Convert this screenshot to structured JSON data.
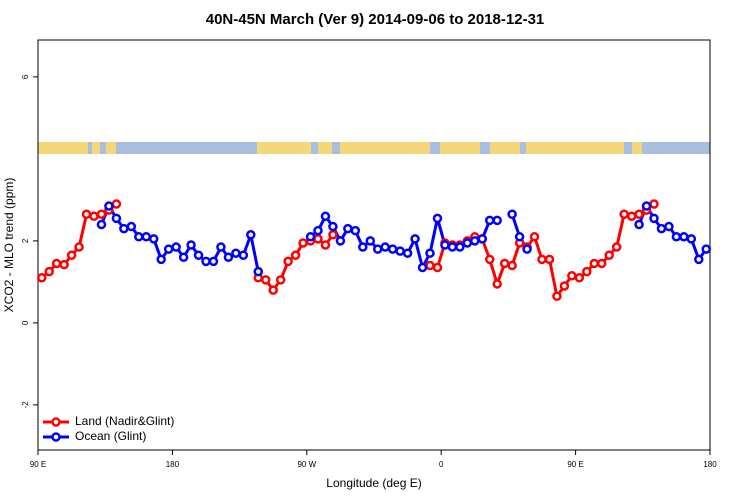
{
  "chart_data": {
    "type": "line",
    "title": "40N-45N March (Ver 9)   2014-09-06 to 2018-12-31",
    "x_label": "Longitude (deg E)",
    "y_label": "XCO2 - MLO trend (ppm)",
    "xlim": [
      90,
      540
    ],
    "ylim": [
      -3.1,
      6.9
    ],
    "xticks": [
      {
        "value": 90,
        "label": "90 E"
      },
      180,
      {
        "value": 270,
        "label": "90 W"
      },
      {
        "value": 360,
        "label": "0"
      },
      {
        "value": 450,
        "label": "90 E"
      },
      {
        "value": 540,
        "label": "180"
      }
    ],
    "yticks": [
      -2,
      0,
      2,
      6
    ],
    "legend": "bottom-left",
    "x": [
      92.5,
      97.5,
      102.5,
      107.5,
      112.5,
      117.5,
      122.5,
      127.5,
      132.5,
      137.5,
      142.5,
      147.5,
      152.5,
      157.5,
      162.5,
      167.5,
      172.5,
      177.5,
      182.5,
      187.5,
      192.5,
      197.5,
      202.5,
      207.5,
      212.5,
      217.5,
      222.5,
      227.5,
      232.5,
      237.5,
      242.5,
      247.5,
      252.5,
      257.5,
      262.5,
      267.5,
      272.5,
      277.5,
      282.5,
      287.5,
      292.5,
      297.5,
      302.5,
      307.5,
      312.5,
      317.5,
      322.5,
      327.5,
      332.5,
      337.5,
      342.5,
      347.5,
      352.5,
      357.5,
      362.5,
      367.5,
      372.5,
      377.5,
      382.5,
      387.5,
      392.5,
      397.5,
      402.5,
      407.5,
      412.5,
      417.5,
      422.5,
      427.5,
      432.5,
      437.5,
      442.5,
      447.5,
      452.5,
      457.5,
      462.5,
      467.5,
      472.5,
      477.5,
      482.5,
      487.5,
      492.5,
      497.5,
      502.5,
      507.5,
      512.5,
      517.5,
      522.5,
      527.5,
      532.5,
      537.5
    ],
    "series": [
      {
        "name": "Land (Nadir&Glint)",
        "color": "#ff0000",
        "values": [
          1.1,
          1.25,
          1.45,
          1.42,
          1.65,
          1.85,
          2.65,
          2.6,
          2.65,
          2.75,
          2.9,
          null,
          null,
          null,
          null,
          null,
          null,
          null,
          null,
          null,
          null,
          null,
          null,
          null,
          null,
          null,
          null,
          null,
          null,
          1.1,
          1.05,
          0.8,
          1.05,
          1.5,
          1.65,
          1.95,
          2.0,
          2.05,
          1.9,
          2.15,
          null,
          null,
          null,
          null,
          null,
          null,
          null,
          null,
          null,
          null,
          null,
          null,
          1.4,
          1.35,
          1.95,
          1.9,
          1.9,
          2.0,
          2.1,
          2.05,
          1.55,
          0.95,
          1.45,
          1.4,
          1.95,
          1.85,
          2.1,
          1.55,
          1.55,
          0.65,
          0.9,
          1.15,
          1.1,
          1.25,
          1.45,
          1.45,
          1.65,
          1.85,
          2.65,
          2.6,
          2.65,
          2.75,
          2.9,
          null,
          null,
          null,
          null,
          null,
          null,
          null
        ]
      },
      {
        "name": "Ocean (Glint)",
        "color": "#0000ff",
        "values": [
          null,
          null,
          null,
          null,
          null,
          null,
          null,
          null,
          2.4,
          2.85,
          2.55,
          2.3,
          2.35,
          2.1,
          2.1,
          2.05,
          1.55,
          1.8,
          1.85,
          1.6,
          1.9,
          1.65,
          1.5,
          1.5,
          1.85,
          1.6,
          1.7,
          1.65,
          2.15,
          1.25,
          null,
          null,
          null,
          null,
          null,
          null,
          2.1,
          2.25,
          2.6,
          2.35,
          2.0,
          2.3,
          2.25,
          1.85,
          2.0,
          1.8,
          1.85,
          1.8,
          1.75,
          1.7,
          2.05,
          1.35,
          1.7,
          2.55,
          1.9,
          1.85,
          1.85,
          1.95,
          2.0,
          2.05,
          2.5,
          2.5,
          null,
          2.65,
          2.1,
          1.8,
          null,
          null,
          null,
          null,
          null,
          null,
          null,
          null,
          null,
          null,
          null,
          null,
          null,
          null,
          2.4,
          2.85,
          2.55,
          2.3,
          2.35,
          2.1,
          2.1,
          2.05,
          1.55,
          1.8
        ]
      }
    ]
  }
}
